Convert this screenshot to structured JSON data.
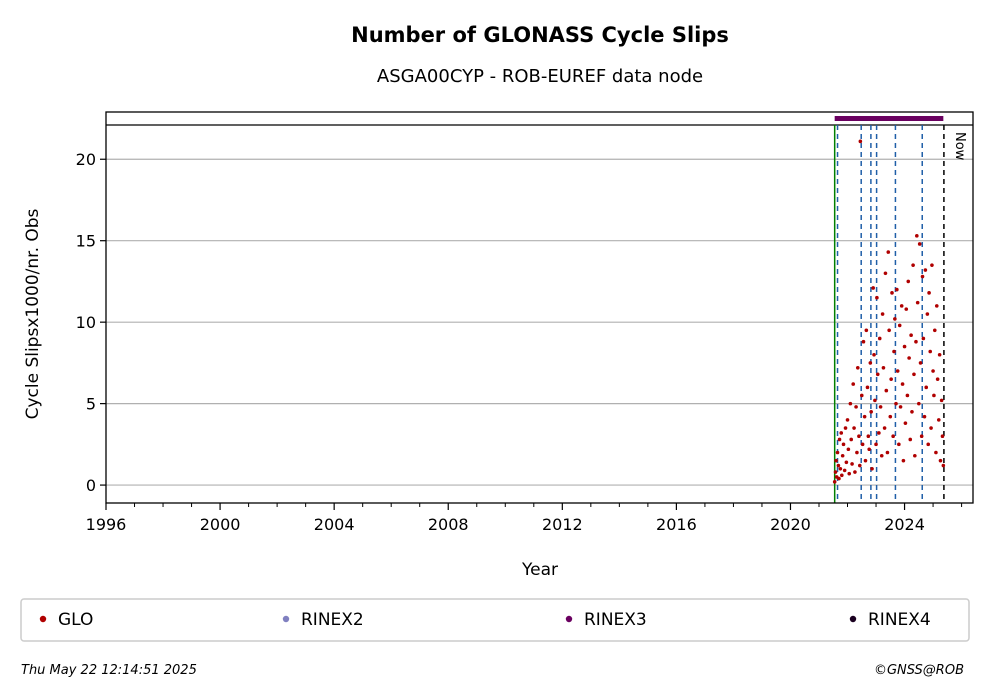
{
  "chart_data": {
    "type": "scatter",
    "title": "Number of GLONASS Cycle Slips",
    "subtitle": "ASGA00CYP - ROB-EUREF data node",
    "xlabel": "Year",
    "ylabel": "Cycle Slipsx1000/nr. Obs",
    "xlim": [
      1996.0,
      2026.4
    ],
    "ylim": [
      -1.1,
      22.9
    ],
    "x_ticks": [
      1996,
      2000,
      2004,
      2008,
      2012,
      2016,
      2020,
      2024
    ],
    "x_tick_labels": [
      "1996",
      "2000",
      "2004",
      "2008",
      "2012",
      "2016",
      "2020",
      "2024"
    ],
    "y_ticks": [
      0,
      5,
      10,
      15,
      20
    ],
    "y_tick_labels": [
      "0",
      "5",
      "10",
      "15",
      "20"
    ],
    "grid": "horizontal",
    "series": [
      {
        "name": "GLO",
        "color": "#b00000",
        "x": [
          2021.55,
          2021.58,
          2021.6,
          2021.62,
          2021.65,
          2021.68,
          2021.7,
          2021.72,
          2021.75,
          2021.78,
          2021.8,
          2021.83,
          2021.86,
          2021.9,
          2021.93,
          2021.96,
          2022.0,
          2022.03,
          2022.06,
          2022.1,
          2022.13,
          2022.16,
          2022.2,
          2022.23,
          2022.26,
          2022.3,
          2022.33,
          2022.36,
          2022.4,
          2022.43,
          2022.45,
          2022.5,
          2022.53,
          2022.56,
          2022.6,
          2022.63,
          2022.66,
          2022.7,
          2022.73,
          2022.76,
          2022.8,
          2022.83,
          2022.86,
          2022.9,
          2022.93,
          2022.96,
          2023.0,
          2023.03,
          2023.06,
          2023.1,
          2023.13,
          2023.16,
          2023.2,
          2023.23,
          2023.26,
          2023.3,
          2023.33,
          2023.36,
          2023.4,
          2023.43,
          2023.46,
          2023.5,
          2023.53,
          2023.56,
          2023.6,
          2023.63,
          2023.66,
          2023.7,
          2023.73,
          2023.76,
          2023.8,
          2023.83,
          2023.86,
          2023.9,
          2023.93,
          2023.96,
          2024.0,
          2024.03,
          2024.06,
          2024.1,
          2024.13,
          2024.16,
          2024.2,
          2024.23,
          2024.26,
          2024.3,
          2024.33,
          2024.36,
          2024.4,
          2024.43,
          2024.46,
          2024.5,
          2024.53,
          2024.56,
          2024.6,
          2024.63,
          2024.66,
          2024.7,
          2024.73,
          2024.76,
          2024.8,
          2024.83,
          2024.86,
          2024.9,
          2024.93,
          2024.96,
          2025.0,
          2025.03,
          2025.06,
          2025.1,
          2025.13,
          2025.16,
          2025.2,
          2025.23,
          2025.26,
          2025.3,
          2025.33,
          2025.36
        ],
        "y": [
          0.2,
          0.8,
          1.5,
          0.5,
          2.0,
          1.2,
          0.4,
          2.8,
          1.0,
          3.2,
          0.6,
          1.8,
          2.5,
          0.9,
          3.5,
          1.4,
          4.0,
          2.2,
          0.7,
          5.0,
          2.8,
          1.3,
          6.2,
          3.5,
          0.8,
          4.8,
          2.0,
          7.2,
          3.0,
          1.2,
          21.1,
          5.5,
          2.5,
          8.8,
          4.2,
          1.5,
          9.5,
          6.0,
          3.0,
          2.2,
          7.5,
          4.5,
          1.0,
          12.1,
          8.0,
          5.2,
          2.5,
          11.5,
          6.8,
          3.2,
          9.0,
          4.8,
          1.8,
          10.5,
          7.2,
          3.5,
          13.0,
          5.8,
          2.0,
          14.3,
          9.5,
          4.2,
          6.5,
          11.8,
          3.0,
          8.2,
          10.2,
          5.0,
          12.0,
          7.0,
          2.5,
          9.8,
          4.8,
          11.0,
          6.2,
          1.5,
          8.5,
          3.8,
          10.8,
          5.5,
          12.5,
          7.8,
          2.8,
          9.2,
          4.5,
          13.5,
          6.8,
          1.8,
          8.8,
          15.3,
          11.2,
          5.0,
          14.8,
          7.5,
          3.0,
          12.8,
          9.0,
          4.2,
          13.2,
          6.0,
          10.5,
          2.5,
          11.8,
          8.2,
          3.5,
          13.5,
          7.0,
          5.5,
          9.5,
          2.0,
          11.0,
          6.5,
          4.0,
          8.0,
          1.5,
          5.2,
          3.0,
          1.2
        ]
      },
      {
        "name": "RINEX2",
        "color": "#8080c0",
        "x": [],
        "y": []
      },
      {
        "name": "RINEX3",
        "color": "#6a0060",
        "x": [
          2021.55,
          2025.36
        ],
        "y": [
          22.5,
          22.5
        ]
      },
      {
        "name": "RINEX4",
        "color": "#1a0020",
        "x": [],
        "y": []
      }
    ],
    "reference_line_y": 22.1,
    "vertical_lines": [
      {
        "x": 2021.55,
        "color": "#008000",
        "style": "solid"
      },
      {
        "x": 2021.65,
        "color": "#1f5fa8",
        "style": "dashed"
      },
      {
        "x": 2022.48,
        "color": "#1f5fa8",
        "style": "dashed"
      },
      {
        "x": 2022.82,
        "color": "#1f5fa8",
        "style": "dashed"
      },
      {
        "x": 2023.02,
        "color": "#1f5fa8",
        "style": "dashed"
      },
      {
        "x": 2023.68,
        "color": "#1f5fa8",
        "style": "dashed"
      },
      {
        "x": 2024.62,
        "color": "#1f5fa8",
        "style": "dashed"
      },
      {
        "x": 2025.38,
        "color": "#000000",
        "style": "dashed"
      }
    ],
    "now_label": "Now",
    "legend_position": "bottom"
  },
  "footer": {
    "timestamp": "Thu May 22 12:14:51 2025",
    "copyright": "©GNSS@ROB"
  }
}
